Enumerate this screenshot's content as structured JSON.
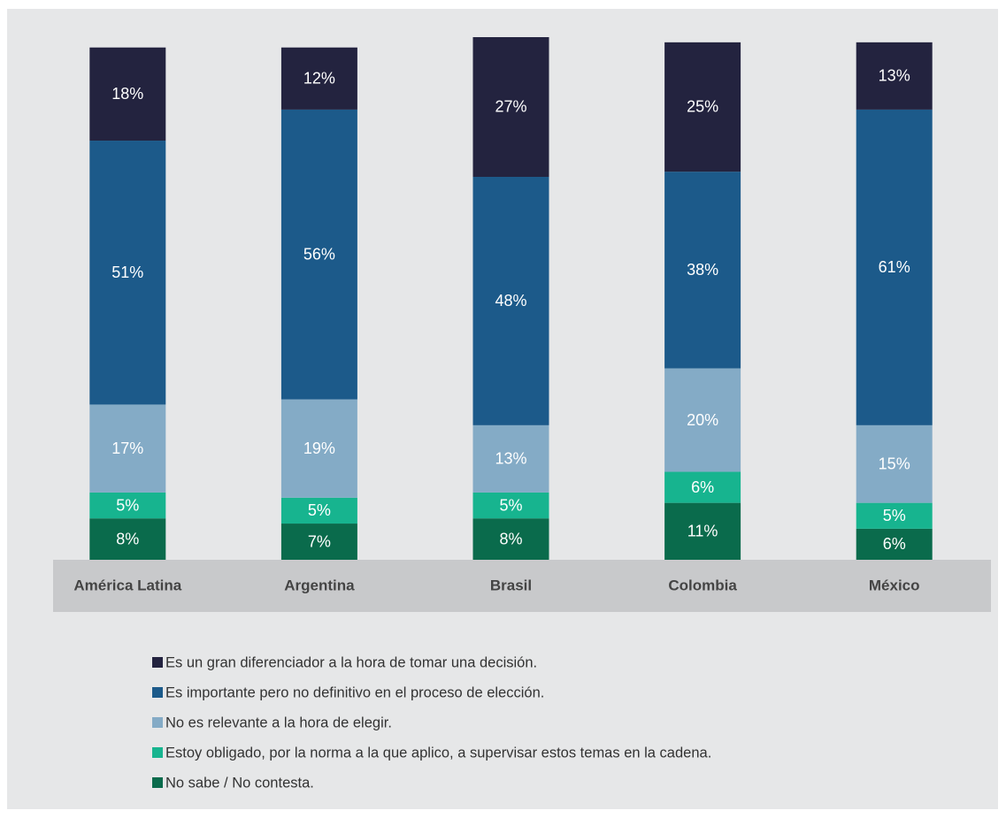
{
  "chart_data": {
    "type": "stacked_bar",
    "categories": [
      "América Latina",
      "Argentina",
      "Brasil",
      "Colombia",
      "México"
    ],
    "series": [
      {
        "name": "Es un gran diferenciador a la hora de tomar una decisión.",
        "color": "#23233f",
        "values": [
          18,
          12,
          27,
          25,
          13
        ],
        "value_labels": [
          "18%",
          "12%",
          "27%",
          "25%",
          "13%"
        ]
      },
      {
        "name": "Es importante pero no definitivo en el proceso de elección.",
        "color": "#1c5a8a",
        "values": [
          51,
          56,
          48,
          38,
          61
        ],
        "value_labels": [
          "51%",
          "56%",
          "48%",
          "38%",
          "61%"
        ]
      },
      {
        "name": "No es relevante a la hora de elegir.",
        "color": "#84abc6",
        "values": [
          17,
          19,
          13,
          20,
          15
        ],
        "value_labels": [
          "17%",
          "19%",
          "13%",
          "20%",
          "15%"
        ]
      },
      {
        "name": "Estoy obligado, por la norma a la que aplico, a supervisar estos temas en la cadena.",
        "color": "#17b48f",
        "values": [
          5,
          5,
          5,
          6,
          5
        ],
        "value_labels": [
          "5%",
          "5%",
          "5%",
          "6%",
          "5%"
        ]
      },
      {
        "name": "No sabe / No contesta.",
        "color": "#0a6b4c",
        "values": [
          8,
          7,
          8,
          11,
          6
        ],
        "value_labels": [
          "8%",
          "7%",
          "8%",
          "11%",
          "6%"
        ]
      }
    ]
  }
}
